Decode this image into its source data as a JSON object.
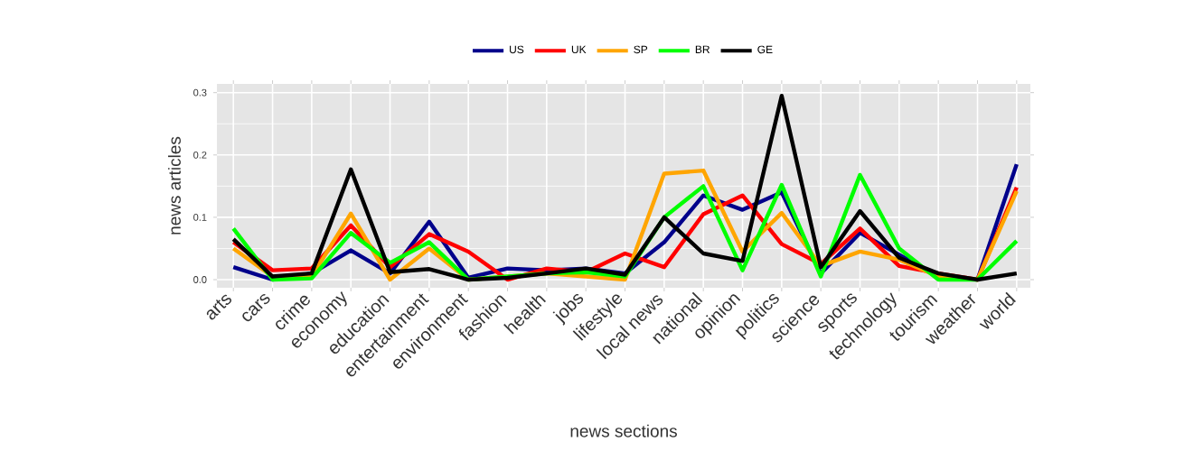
{
  "chart_data": {
    "type": "line",
    "xlabel": "news sections",
    "ylabel": "news articles",
    "categories": [
      "arts",
      "cars",
      "crime",
      "economy",
      "education",
      "entertainment",
      "environment",
      "fashion",
      "health",
      "jobs",
      "lifestyle",
      "local news",
      "national",
      "opinion",
      "politics",
      "science",
      "sports",
      "technology",
      "tourism",
      "weather",
      "world"
    ],
    "series": [
      {
        "name": "US",
        "color": "#00008b",
        "values": [
          0.02,
          0,
          0.01,
          0.047,
          0.01,
          0.093,
          0.003,
          0.018,
          0.015,
          0.018,
          0.01,
          0.06,
          0.135,
          0.112,
          0.14,
          0.01,
          0.075,
          0.04,
          0.005,
          0,
          0.185
        ]
      },
      {
        "name": "UK",
        "color": "#ff0000",
        "values": [
          0.06,
          0.015,
          0.018,
          0.087,
          0.02,
          0.073,
          0.045,
          0,
          0.018,
          0.012,
          0.042,
          0.02,
          0.105,
          0.135,
          0.057,
          0.025,
          0.082,
          0.022,
          0.01,
          0,
          0.148
        ]
      },
      {
        "name": "SP",
        "color": "#ffa500",
        "values": [
          0.05,
          0.005,
          0.005,
          0.106,
          0,
          0.05,
          0,
          0.005,
          0.01,
          0.005,
          0,
          0.17,
          0.175,
          0.045,
          0.107,
          0.022,
          0.045,
          0.032,
          0.005,
          0,
          0.142
        ]
      },
      {
        "name": "BR",
        "color": "#00ff00",
        "values": [
          0.082,
          0,
          0.002,
          0.075,
          0.027,
          0.06,
          0,
          0.005,
          0.01,
          0.012,
          0.005,
          0.1,
          0.15,
          0.015,
          0.152,
          0.005,
          0.168,
          0.05,
          0,
          0,
          0.062
        ]
      },
      {
        "name": "GE",
        "color": "#000000",
        "values": [
          0.065,
          0.005,
          0.01,
          0.177,
          0.012,
          0.017,
          0,
          0.003,
          0.01,
          0.018,
          0.008,
          0.1,
          0.042,
          0.03,
          0.295,
          0.02,
          0.11,
          0.035,
          0.01,
          0,
          0.01
        ]
      }
    ],
    "ylim": [
      -0.013,
      0.314
    ],
    "yticks": [
      {
        "value": 0,
        "label": "0.0"
      },
      {
        "value": 0.1,
        "label": "0.1"
      },
      {
        "value": 0.2,
        "label": "0.2"
      },
      {
        "value": 0.3,
        "label": "0.3"
      }
    ],
    "grid": true,
    "legend": "top",
    "marker": "none",
    "line_style": "solid"
  }
}
